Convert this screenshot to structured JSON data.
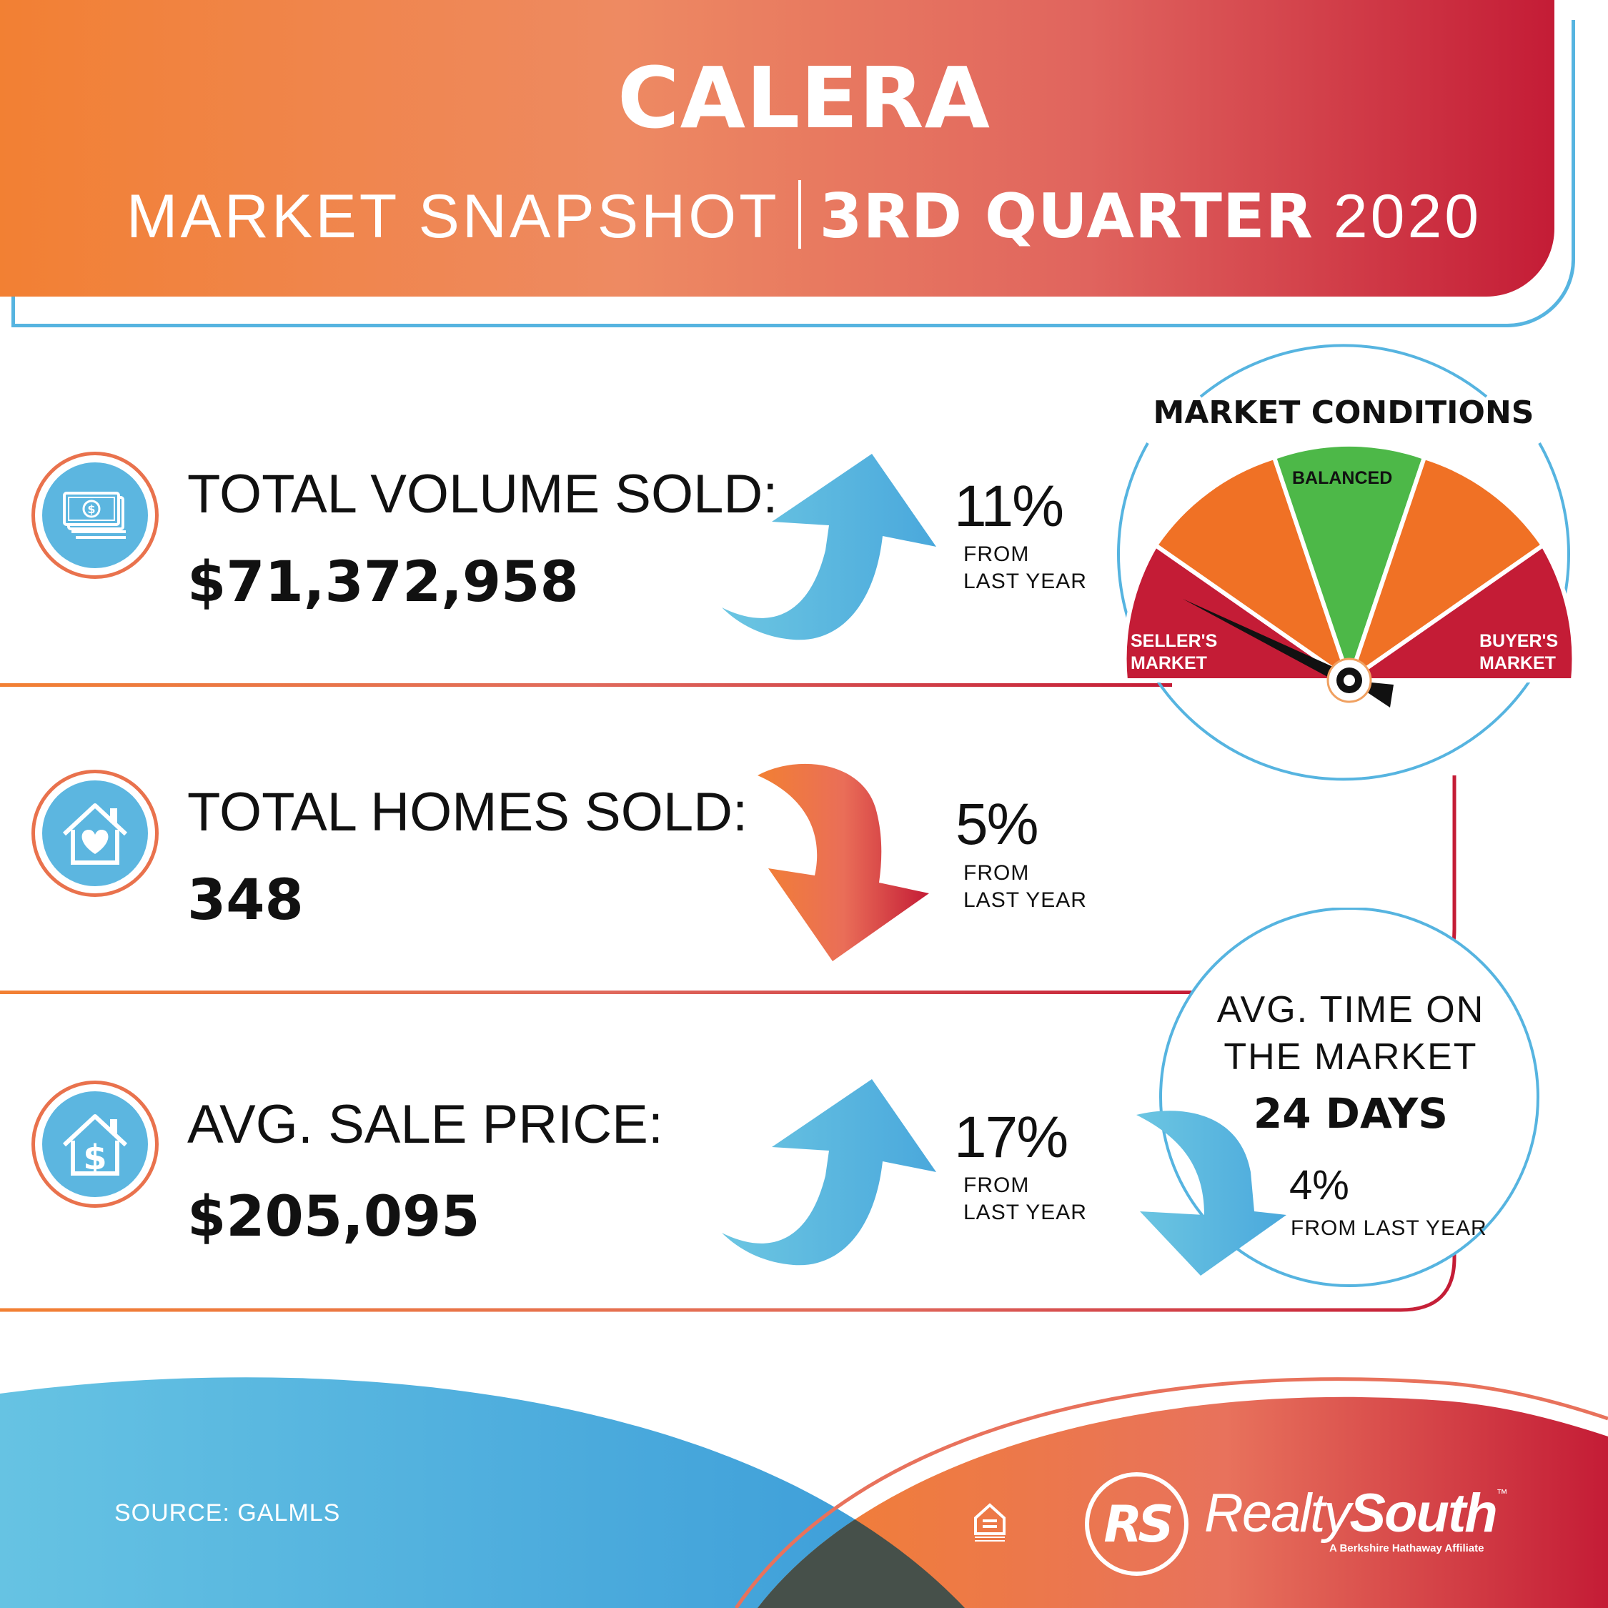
{
  "header": {
    "title": "CALERA",
    "subtitle_left": "MARKET SNAPSHOT",
    "subtitle_bold": "3RD QUARTER",
    "subtitle_year": "2020"
  },
  "metrics": [
    {
      "label": "TOTAL VOLUME SOLD:",
      "value": "$71,372,958",
      "change": "11%",
      "from_line1": "FROM",
      "from_line2": "LAST YEAR",
      "direction": "up",
      "icon": "money-icon"
    },
    {
      "label": "TOTAL HOMES SOLD:",
      "value": "348",
      "change": "5%",
      "from_line1": "FROM",
      "from_line2": "LAST YEAR",
      "direction": "down",
      "icon": "house-heart-icon"
    },
    {
      "label": "AVG. SALE PRICE:",
      "value": "$205,095",
      "change": "17%",
      "from_line1": "FROM",
      "from_line2": "LAST YEAR",
      "direction": "up",
      "icon": "house-dollar-icon"
    }
  ],
  "gauge": {
    "title": "MARKET CONDITIONS",
    "balanced": "BALANCED",
    "seller_line1": "SELLER'S",
    "seller_line2": "MARKET",
    "buyer_line1": "BUYER'S",
    "buyer_line2": "MARKET",
    "pointer": "seller's market"
  },
  "time_on_market": {
    "line1": "AVG. TIME ON",
    "line2": "THE MARKET",
    "value": "24 DAYS",
    "change": "4%",
    "from": "FROM LAST YEAR",
    "direction": "down"
  },
  "footer": {
    "source": "SOURCE: GALMLS",
    "brand_regular": "Realty",
    "brand_bold": "South",
    "brand_tm": "™",
    "brand_sub": "A Berkshire Hathaway Affiliate",
    "logo_letters": "RS",
    "eho_text": "EQUAL HOUSING OPPORTUNITY"
  },
  "colors": {
    "orange": "#f28033",
    "red": "#c41c36",
    "blue": "#56b4e0",
    "green": "#4db848"
  }
}
